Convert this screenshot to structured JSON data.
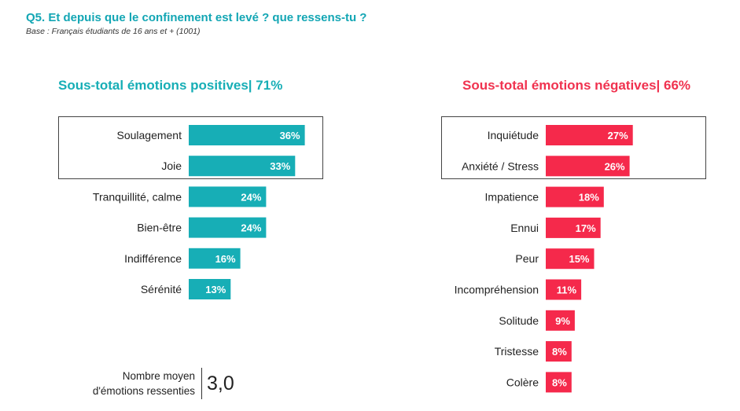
{
  "header": {
    "question": "Q5. Et depuis que le confinement est levé ? que ressens-tu ?",
    "base": "Base : Français étudiants de 16 ans et + (1001)"
  },
  "colors": {
    "positive": "#17aeb6",
    "negative": "#f5294b",
    "title": "#13a6b4"
  },
  "chart_data": [
    {
      "type": "bar",
      "orientation": "horizontal",
      "title": "Sous-total émotions positives| 71%",
      "categories": [
        "Soulagement",
        "Joie",
        "Tranquillité, calme",
        "Bien-être",
        "Indifférence",
        "Sérénité"
      ],
      "values": [
        36,
        33,
        24,
        24,
        16,
        13
      ],
      "value_labels": [
        "36%",
        "33%",
        "24%",
        "24%",
        "16%",
        "13%"
      ],
      "unit": "%",
      "boxed_categories": [
        "Soulagement",
        "Joie"
      ],
      "grid": false
    },
    {
      "type": "bar",
      "orientation": "horizontal",
      "title": "Sous-total émotions négatives| 66%",
      "categories": [
        "Inquiétude",
        "Anxiété / Stress",
        "Impatience",
        "Ennui",
        "Peur",
        "Incompréhension",
        "Solitude",
        "Tristesse",
        "Colère"
      ],
      "values": [
        27,
        26,
        18,
        17,
        15,
        11,
        9,
        8,
        8
      ],
      "value_labels": [
        "27%",
        "26%",
        "18%",
        "17%",
        "15%",
        "11%",
        "9%",
        "8%",
        "8%"
      ],
      "unit": "%",
      "boxed_categories": [
        "Inquiétude",
        "Anxiété / Stress"
      ],
      "grid": false
    }
  ],
  "footer": {
    "label_line1": "Nombre moyen",
    "label_line2": "d'émotions ressenties",
    "value": "3,0"
  }
}
